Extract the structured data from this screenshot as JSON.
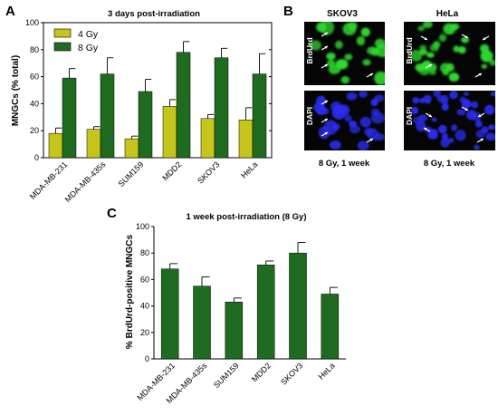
{
  "panels": {
    "a": "A",
    "b": "B",
    "c": "C"
  },
  "colors": {
    "gy4": "#c5c51c",
    "gy8": "#1f6b1f",
    "micro_green": "#2fdc2f",
    "micro_blue": "#2a2cf0",
    "micro_bg": "#050505"
  },
  "chart_data": [
    {
      "type": "bar",
      "title": "3 days post-irradiation",
      "ylabel": "MNGCs (% total)",
      "xlabel": "",
      "ylim": [
        0,
        100
      ],
      "yticks": [
        "0",
        "20",
        "40",
        "60",
        "80",
        "100"
      ],
      "legend_position": "top-left",
      "categories": [
        "MDA-MB-231",
        "MDA-MB-435s",
        "SUM159",
        "MDD2",
        "SKOV3",
        "HeLa"
      ],
      "series": [
        {
          "name": "4 Gy",
          "values": [
            18,
            21,
            14,
            38,
            29,
            28
          ],
          "errors": [
            4,
            2,
            2,
            5,
            3,
            9
          ]
        },
        {
          "name": "8 Gy",
          "values": [
            59,
            62,
            49,
            78,
            74,
            62
          ],
          "errors": [
            7,
            12,
            9,
            8,
            7,
            15
          ]
        }
      ]
    },
    {
      "type": "bar",
      "title": "1 week post-irradiation (8 Gy)",
      "ylabel": "% BrdUrd-positive MNGCs",
      "xlabel": "",
      "ylim": [
        0,
        100
      ],
      "yticks": [
        "0",
        "20",
        "40",
        "60",
        "80",
        "100"
      ],
      "categories": [
        "MDA-MB-231",
        "MDA-MB-435s",
        "SUM159",
        "MDD2",
        "SKOV3",
        "HeLa"
      ],
      "series": [
        {
          "values": [
            68,
            55,
            43,
            71,
            80,
            49
          ],
          "errors": [
            4,
            7,
            3,
            3,
            8,
            5
          ]
        }
      ]
    }
  ],
  "micrographs": {
    "columns": [
      "SKOV3",
      "HeLa"
    ],
    "rows": [
      "BrdUrd",
      "DAPI"
    ],
    "captions": [
      "8 Gy, 1 week",
      "8 Gy, 1 week"
    ]
  }
}
